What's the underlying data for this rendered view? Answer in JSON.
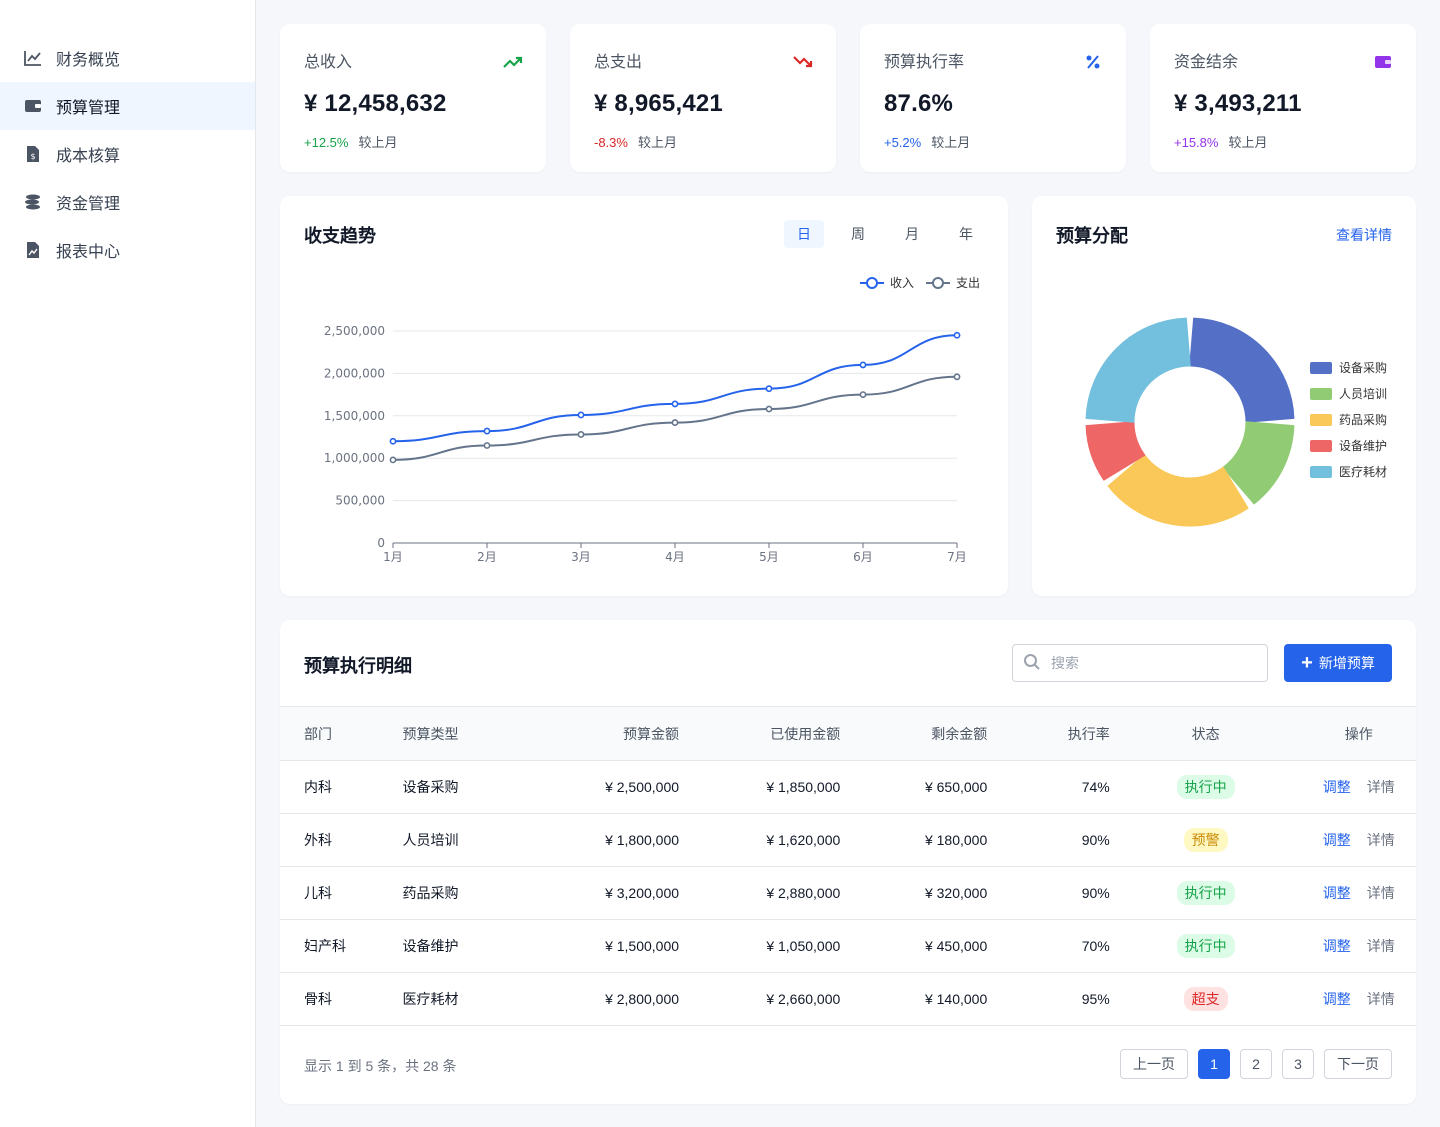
{
  "sidebar": {
    "items": [
      {
        "label": "财务概览",
        "icon": "line-chart-icon",
        "active": false
      },
      {
        "label": "预算管理",
        "icon": "wallet-icon",
        "active": true
      },
      {
        "label": "成本核算",
        "icon": "invoice-icon",
        "active": false
      },
      {
        "label": "资金管理",
        "icon": "coins-icon",
        "active": false
      },
      {
        "label": "报表中心",
        "icon": "report-icon",
        "active": false
      }
    ]
  },
  "stats": [
    {
      "label": "总收入",
      "value": "¥ 12,458,632",
      "change": "+12.5%",
      "compare": "较上月",
      "color": "#16a34a",
      "icon": "trending-up-icon"
    },
    {
      "label": "总支出",
      "value": "¥ 8,965,421",
      "change": "-8.3%",
      "compare": "较上月",
      "color": "#dc2626",
      "icon": "trending-down-icon"
    },
    {
      "label": "预算执行率",
      "value": "87.6%",
      "change": "+5.2%",
      "compare": "较上月",
      "color": "#2563eb",
      "icon": "percent-icon"
    },
    {
      "label": "资金结余",
      "value": "¥ 3,493,211",
      "change": "+15.8%",
      "compare": "较上月",
      "color": "#9333ea",
      "icon": "wallet-icon"
    }
  ],
  "trend": {
    "title": "收支趋势",
    "tabs": [
      "日",
      "周",
      "月",
      "年"
    ],
    "active_tab": "日"
  },
  "allocation": {
    "title": "预算分配",
    "link": "查看详情"
  },
  "chart_data": [
    {
      "type": "line",
      "x": [
        "1月",
        "2月",
        "3月",
        "4月",
        "5月",
        "6月",
        "7月"
      ],
      "series": [
        {
          "name": "收入",
          "color": "#2563eb",
          "values": [
            1200000,
            1320000,
            1510000,
            1640000,
            1820000,
            2100000,
            2450000
          ]
        },
        {
          "name": "支出",
          "color": "#64748b",
          "values": [
            980000,
            1150000,
            1280000,
            1420000,
            1580000,
            1750000,
            1960000
          ]
        }
      ],
      "yticks": [
        "0",
        "500,000",
        "1,000,000",
        "1,500,000",
        "2,000,000",
        "2,500,000"
      ],
      "ylim": [
        0,
        2500000
      ],
      "legend": "top-right",
      "grid": true
    },
    {
      "type": "pie",
      "donut": true,
      "categories": [
        "设备采购",
        "人员培训",
        "药品采购",
        "设备维护",
        "医疗耗材"
      ],
      "values": [
        25,
        15,
        25,
        10,
        25
      ],
      "colors": [
        "#5470c6",
        "#91cc75",
        "#fac858",
        "#ee6666",
        "#73c0de"
      ],
      "legend": "right"
    }
  ],
  "table": {
    "title": "预算执行明细",
    "search_placeholder": "搜索",
    "add_label": "新增预算",
    "headers": [
      "部门",
      "预算类型",
      "预算金额",
      "已使用金额",
      "剩余金额",
      "执行率",
      "状态",
      "操作"
    ],
    "rows": [
      {
        "dept": "内科",
        "type": "设备采购",
        "budget": "¥ 2,500,000",
        "used": "¥ 1,850,000",
        "remain": "¥ 650,000",
        "rate": "74%",
        "status": "执行中",
        "status_color": "#16a34a",
        "status_bg": "#dcfce7"
      },
      {
        "dept": "外科",
        "type": "人员培训",
        "budget": "¥ 1,800,000",
        "used": "¥ 1,620,000",
        "remain": "¥ 180,000",
        "rate": "90%",
        "status": "预警",
        "status_color": "#ca8a04",
        "status_bg": "#fef9c3"
      },
      {
        "dept": "儿科",
        "type": "药品采购",
        "budget": "¥ 3,200,000",
        "used": "¥ 2,880,000",
        "remain": "¥ 320,000",
        "rate": "90%",
        "status": "执行中",
        "status_color": "#16a34a",
        "status_bg": "#dcfce7"
      },
      {
        "dept": "妇产科",
        "type": "设备维护",
        "budget": "¥ 1,500,000",
        "used": "¥ 1,050,000",
        "remain": "¥ 450,000",
        "rate": "70%",
        "status": "执行中",
        "status_color": "#16a34a",
        "status_bg": "#dcfce7"
      },
      {
        "dept": "骨科",
        "type": "医疗耗材",
        "budget": "¥ 2,800,000",
        "used": "¥ 2,660,000",
        "remain": "¥ 140,000",
        "rate": "95%",
        "status": "超支",
        "status_color": "#dc2626",
        "status_bg": "#fee2e2"
      }
    ],
    "actions": {
      "adjust": "调整",
      "detail": "详情"
    },
    "footer": "显示 1 到 5 条，共 28 条",
    "pager": {
      "prev": "上一页",
      "pages": [
        "1",
        "2",
        "3"
      ],
      "active": "1",
      "next": "下一页"
    }
  }
}
